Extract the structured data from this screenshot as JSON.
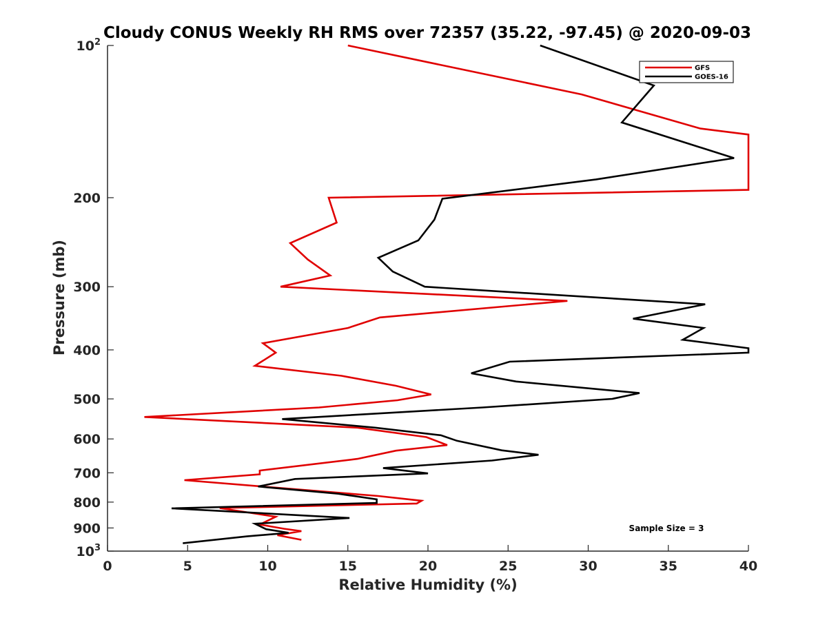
{
  "chart_data": {
    "type": "line",
    "title": "Cloudy CONUS Weekly RH RMS over 72357 (35.22, -97.45) @ 2020-09-03",
    "xlabel": "Relative Humidity (%)",
    "ylabel": "Pressure (mb)",
    "xlim": [
      0,
      40
    ],
    "ylim": [
      100,
      1000
    ],
    "yscale": "log",
    "y_reversed": true,
    "grid": false,
    "legend_position": "top-right",
    "xticks": [
      0,
      5,
      10,
      15,
      20,
      25,
      30,
      35,
      40
    ],
    "yticks": [
      {
        "value": 100,
        "base": "10",
        "exp": "2"
      },
      {
        "value": 200,
        "label": "200"
      },
      {
        "value": 300,
        "label": "300"
      },
      {
        "value": 400,
        "label": "400"
      },
      {
        "value": 500,
        "label": "500"
      },
      {
        "value": 600,
        "label": "600"
      },
      {
        "value": 700,
        "label": "700"
      },
      {
        "value": 800,
        "label": "800"
      },
      {
        "value": 900,
        "label": "900"
      },
      {
        "value": 1000,
        "base": "10",
        "exp": "3"
      }
    ],
    "annotation": "Sample Size = 3",
    "series": [
      {
        "name": "GFS",
        "color": "#e00000",
        "points": [
          [
            15.0,
            100
          ],
          [
            29.6,
            125
          ],
          [
            37.0,
            146
          ],
          [
            40.0,
            150
          ],
          [
            40.0,
            193
          ],
          [
            13.8,
            200
          ],
          [
            14.3,
            224
          ],
          [
            11.4,
            246
          ],
          [
            12.5,
            265
          ],
          [
            13.9,
            285
          ],
          [
            10.8,
            300
          ],
          [
            28.7,
            320
          ],
          [
            17.0,
            345
          ],
          [
            15.0,
            362
          ],
          [
            9.7,
            388
          ],
          [
            10.5,
            405
          ],
          [
            9.2,
            430
          ],
          [
            14.6,
            450
          ],
          [
            18.0,
            471
          ],
          [
            20.2,
            490
          ],
          [
            18.1,
            503
          ],
          [
            13.2,
            520
          ],
          [
            2.3,
            543
          ],
          [
            15.6,
            570
          ],
          [
            19.9,
            595
          ],
          [
            21.2,
            617
          ],
          [
            18.0,
            633
          ],
          [
            15.6,
            657
          ],
          [
            9.5,
            693
          ],
          [
            9.5,
            705
          ],
          [
            4.8,
            724
          ],
          [
            16.9,
            778
          ],
          [
            19.6,
            795
          ],
          [
            19.3,
            805
          ],
          [
            7.0,
            822
          ],
          [
            10.5,
            855
          ],
          [
            9.5,
            886
          ],
          [
            11.0,
            903
          ],
          [
            12.1,
            913
          ],
          [
            10.6,
            930
          ],
          [
            12.1,
            950
          ]
        ]
      },
      {
        "name": "GOES-16",
        "color": "#000000",
        "points": [
          [
            27.0,
            100
          ],
          [
            34.1,
            120
          ],
          [
            33.8,
            123
          ],
          [
            32.1,
            142
          ],
          [
            39.1,
            167
          ],
          [
            30.5,
            184
          ],
          [
            20.9,
            201
          ],
          [
            20.4,
            221
          ],
          [
            19.4,
            243
          ],
          [
            16.9,
            263
          ],
          [
            17.8,
            280
          ],
          [
            19.8,
            300
          ],
          [
            37.3,
            325
          ],
          [
            32.8,
            347
          ],
          [
            37.2,
            362
          ],
          [
            35.9,
            382
          ],
          [
            40.0,
            397
          ],
          [
            40.0,
            405
          ],
          [
            25.1,
            422
          ],
          [
            22.7,
            445
          ],
          [
            25.5,
            462
          ],
          [
            33.2,
            487
          ],
          [
            31.5,
            500
          ],
          [
            23.4,
            520
          ],
          [
            10.9,
            548
          ],
          [
            16.7,
            570
          ],
          [
            20.8,
            590
          ],
          [
            21.8,
            605
          ],
          [
            24.6,
            632
          ],
          [
            26.9,
            645
          ],
          [
            24.0,
            662
          ],
          [
            17.2,
            685
          ],
          [
            20.0,
            702
          ],
          [
            11.7,
            720
          ],
          [
            9.4,
            745
          ],
          [
            14.4,
            770
          ],
          [
            16.8,
            790
          ],
          [
            16.8,
            803
          ],
          [
            4.0,
            823
          ],
          [
            15.1,
            860
          ],
          [
            9.2,
            883
          ],
          [
            9.9,
            905
          ],
          [
            11.3,
            920
          ],
          [
            8.7,
            935
          ],
          [
            4.7,
            965
          ]
        ]
      }
    ]
  }
}
